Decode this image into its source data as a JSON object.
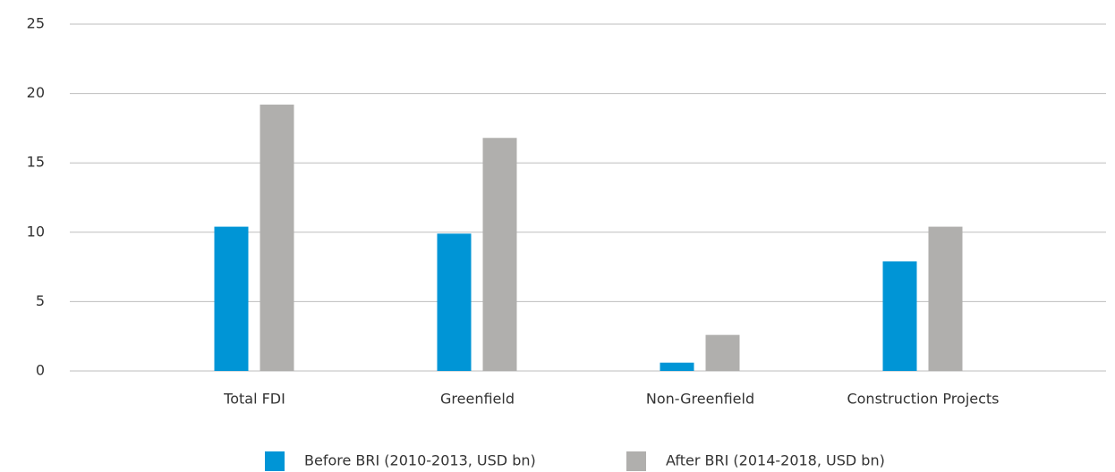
{
  "chart_data": {
    "type": "bar",
    "categories": [
      "Total FDI",
      "Greenfield",
      "Non-Greenfield",
      "Construction Projects"
    ],
    "series": [
      {
        "name": "Before BRI (2010-2013, USD bn)",
        "color": "#0095d6",
        "values": [
          10.4,
          9.9,
          0.6,
          7.9
        ]
      },
      {
        "name": "After BRI (2014-2018, USD bn)",
        "color": "#b0afad",
        "values": [
          19.2,
          16.8,
          2.6,
          10.4
        ]
      }
    ],
    "ylim": [
      0,
      25
    ],
    "yticks": [
      0,
      5,
      10,
      15,
      20,
      25
    ],
    "grid": true,
    "legend": "bottom"
  }
}
